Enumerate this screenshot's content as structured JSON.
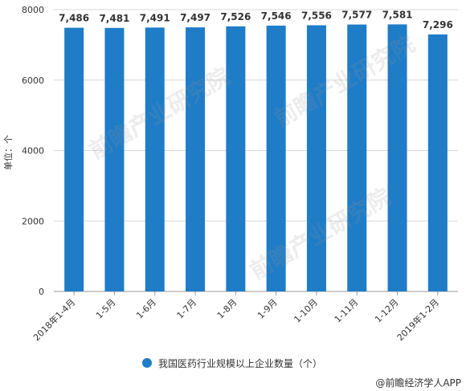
{
  "chart_data": {
    "type": "bar",
    "categories": [
      "2018年1-4月",
      "1-5月",
      "1-6月",
      "1-7月",
      "1-8月",
      "1-9月",
      "1-10月",
      "1-11月",
      "1-12月",
      "2019年1-2月"
    ],
    "series": [
      {
        "name": "我国医药行业规模以上企业数量（个）",
        "values": [
          7486,
          7481,
          7491,
          7497,
          7526,
          7546,
          7556,
          7577,
          7581,
          7296
        ]
      }
    ],
    "value_labels": [
      "7,486",
      "7,481",
      "7,491",
      "7,497",
      "7,526",
      "7,546",
      "7,556",
      "7,577",
      "7,581",
      "7,296"
    ],
    "ylabel": "单位：个",
    "ylim": [
      0,
      8000
    ],
    "yticks": [
      0,
      2000,
      4000,
      6000,
      8000
    ],
    "grid": true,
    "legend_position": "bottom"
  },
  "colors": {
    "bar": "#1f7cc7",
    "grid": "#d9d9d9",
    "axis": "#999999"
  },
  "source": "@前瞻经济学人APP",
  "watermark_text": "前瞻产业研究院"
}
